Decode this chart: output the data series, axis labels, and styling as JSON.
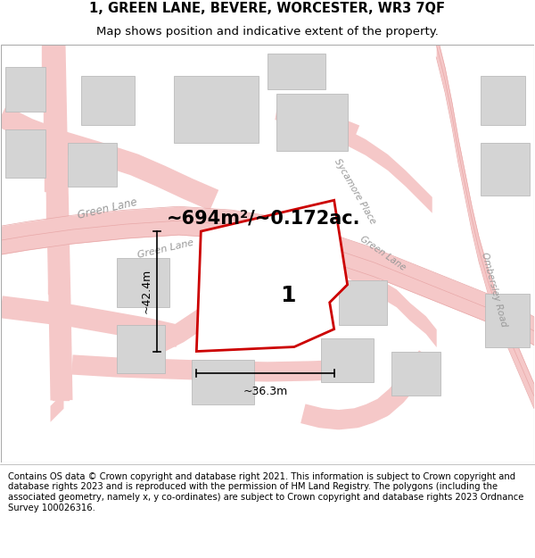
{
  "title_line1": "1, GREEN LANE, BEVERE, WORCESTER, WR3 7QF",
  "title_line2": "Map shows position and indicative extent of the property.",
  "area_text": "~694m²/~0.172ac.",
  "dim_width": "~36.3m",
  "dim_height": "~42.4m",
  "label_number": "1",
  "footer_text": "Contains OS data © Crown copyright and database right 2021. This information is subject to Crown copyright and database rights 2023 and is reproduced with the permission of HM Land Registry. The polygons (including the associated geometry, namely x, y co-ordinates) are subject to Crown copyright and database rights 2023 Ordnance Survey 100026316.",
  "map_bg": "#ebebeb",
  "road_fill": "#f5c8c8",
  "road_edge": "#e8a8a8",
  "building_fill": "#d4d4d4",
  "building_edge": "#bbbbbb",
  "plot_fill": "#ffffff",
  "plot_stroke": "#cc0000",
  "street_label_color": "#999999",
  "title_fontsize": 10.5,
  "subtitle_fontsize": 9.5,
  "footer_fontsize": 7.2,
  "area_fontsize": 15,
  "dim_fontsize": 9,
  "label_fontsize": 18,
  "street_fontsize": 8.5
}
